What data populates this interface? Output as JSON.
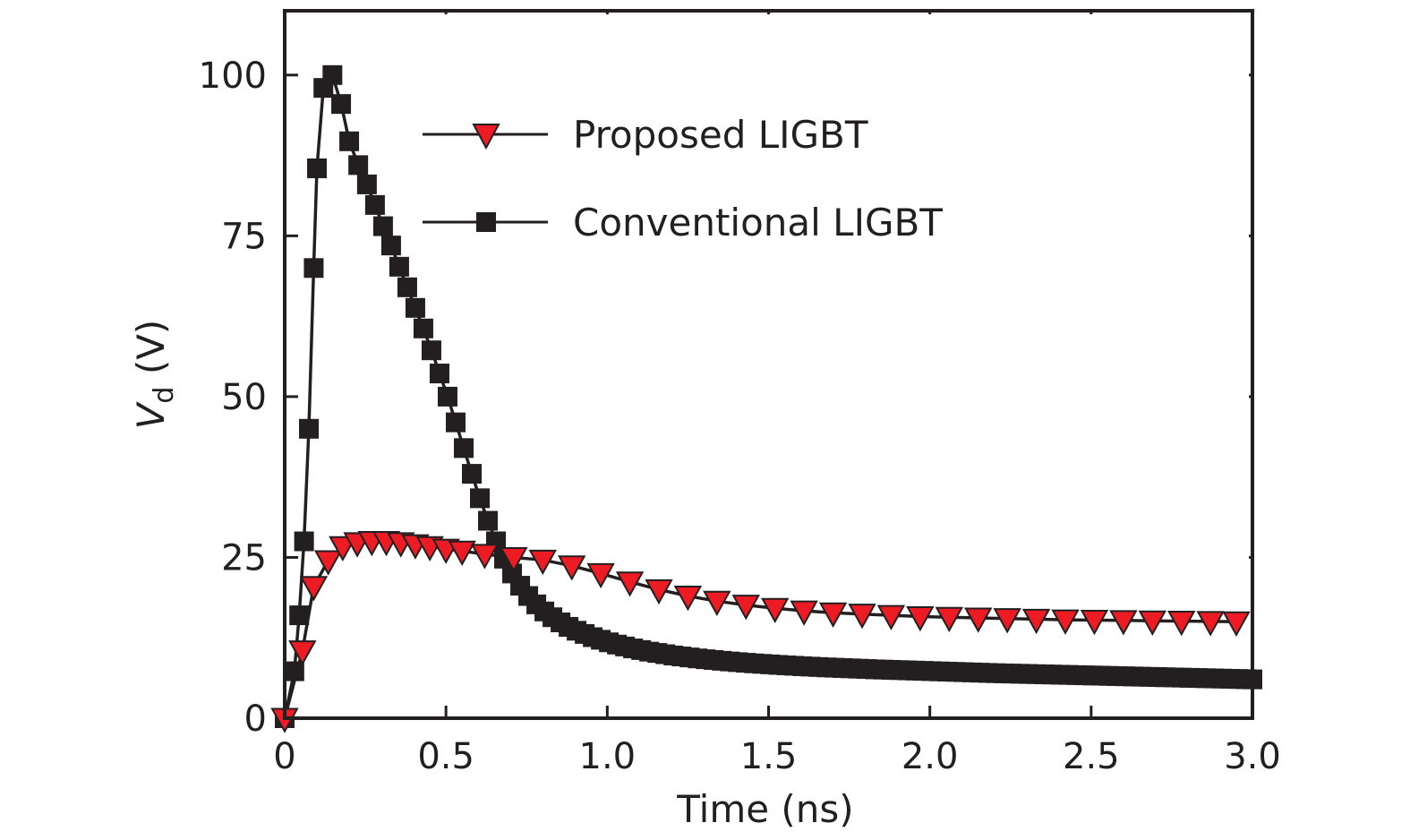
{
  "chart_data": {
    "type": "line",
    "title": "",
    "xlabel": "Time (ns)",
    "ylabel": {
      "main": "V",
      "subscript": "d",
      "unit": " (V)"
    },
    "xlim": [
      0,
      3.0
    ],
    "ylim": [
      0,
      110
    ],
    "x_ticks": [
      0,
      0.5,
      1.0,
      1.5,
      2.0,
      2.5,
      3.0
    ],
    "x_tick_labels": [
      "0",
      "0.5",
      "1.0",
      "1.5",
      "2.0",
      "2.5",
      "3.0"
    ],
    "y_ticks": [
      0,
      25,
      50,
      75,
      100
    ],
    "y_tick_labels": [
      "0",
      "25",
      "50",
      "75",
      "100"
    ],
    "grid": false,
    "legend_position": "top-center",
    "series": [
      {
        "name": "Proposed LIGBT",
        "marker": "triangle-down",
        "color": "#ed1c24",
        "edge_color": "#231f20",
        "x": [
          0,
          0.055,
          0.09,
          0.135,
          0.18,
          0.225,
          0.27,
          0.315,
          0.36,
          0.405,
          0.45,
          0.5,
          0.55,
          0.62,
          0.71,
          0.8,
          0.89,
          0.98,
          1.07,
          1.16,
          1.25,
          1.34,
          1.43,
          1.52,
          1.61,
          1.7,
          1.79,
          1.88,
          1.97,
          2.06,
          2.15,
          2.24,
          2.33,
          2.42,
          2.51,
          2.6,
          2.69,
          2.78,
          2.87,
          2.95
        ],
        "y": [
          0,
          10.5,
          20.5,
          24.5,
          26.7,
          27.3,
          27.5,
          27.5,
          27.3,
          27.0,
          26.7,
          26.3,
          26.0,
          25.5,
          25.0,
          24.6,
          23.7,
          22.5,
          21.2,
          20.0,
          19.0,
          18.2,
          17.6,
          17.1,
          16.7,
          16.4,
          16.2,
          16.0,
          15.8,
          15.7,
          15.6,
          15.5,
          15.4,
          15.3,
          15.25,
          15.2,
          15.15,
          15.1,
          15.05,
          15.0
        ]
      },
      {
        "name": "Conventional LIGBT",
        "marker": "square",
        "color": "#231f20",
        "edge_color": "#231f20",
        "x": [
          0,
          0.03,
          0.045,
          0.06,
          0.075,
          0.09,
          0.1,
          0.12,
          0.148,
          0.175,
          0.2,
          0.228,
          0.255,
          0.28,
          0.305,
          0.33,
          0.355,
          0.38,
          0.405,
          0.43,
          0.455,
          0.48,
          0.505,
          0.53,
          0.555,
          0.58,
          0.605,
          0.63,
          0.655,
          0.68,
          0.705,
          0.73,
          0.755,
          0.78,
          0.805,
          0.83,
          0.855,
          0.88,
          0.905,
          0.93,
          0.955,
          0.98,
          1.005,
          1.03,
          1.055,
          1.08,
          1.105,
          1.13,
          1.155,
          1.18,
          1.205,
          1.23,
          1.255,
          1.28,
          1.305,
          1.33,
          1.355,
          1.38,
          1.405,
          1.43,
          1.455,
          1.48,
          1.505,
          1.53,
          1.555,
          1.58,
          1.605,
          1.63,
          1.655,
          1.68,
          1.705,
          1.73,
          1.755,
          1.78,
          1.805,
          1.83,
          1.855,
          1.88,
          1.905,
          1.93,
          1.955,
          1.98,
          2.005,
          2.03,
          2.055,
          2.08,
          2.105,
          2.13,
          2.155,
          2.18,
          2.205,
          2.23,
          2.255,
          2.28,
          2.305,
          2.33,
          2.355,
          2.38,
          2.405,
          2.43,
          2.455,
          2.48,
          2.505,
          2.53,
          2.555,
          2.58,
          2.605,
          2.63,
          2.655,
          2.68,
          2.705,
          2.73,
          2.755,
          2.78,
          2.805,
          2.83,
          2.855,
          2.88,
          2.905,
          2.93,
          2.955,
          2.98,
          3.0
        ],
        "y": [
          0,
          7.3,
          16.0,
          27.5,
          45.0,
          70.0,
          85.5,
          98.0,
          100.0,
          95.5,
          89.7,
          86.0,
          83.0,
          79.8,
          76.5,
          73.5,
          70.2,
          67.0,
          63.8,
          60.6,
          57.2,
          53.6,
          50.0,
          46.0,
          42.0,
          38.0,
          34.2,
          30.7,
          27.5,
          24.8,
          22.5,
          20.6,
          19.0,
          17.7,
          16.6,
          15.7,
          14.9,
          14.2,
          13.6,
          13.1,
          12.6,
          12.2,
          11.8,
          11.45,
          11.15,
          10.85,
          10.6,
          10.35,
          10.15,
          9.95,
          9.75,
          9.6,
          9.45,
          9.3,
          9.17,
          9.05,
          8.93,
          8.82,
          8.72,
          8.62,
          8.53,
          8.45,
          8.37,
          8.29,
          8.22,
          8.15,
          8.08,
          8.02,
          7.96,
          7.9,
          7.85,
          7.8,
          7.75,
          7.7,
          7.65,
          7.6,
          7.56,
          7.52,
          7.48,
          7.44,
          7.4,
          7.36,
          7.32,
          7.28,
          7.24,
          7.2,
          7.16,
          7.12,
          7.08,
          7.04,
          7.0,
          6.97,
          6.94,
          6.91,
          6.88,
          6.85,
          6.82,
          6.79,
          6.76,
          6.73,
          6.7,
          6.67,
          6.64,
          6.61,
          6.58,
          6.55,
          6.52,
          6.49,
          6.46,
          6.43,
          6.4,
          6.37,
          6.34,
          6.31,
          6.28,
          6.25,
          6.22,
          6.19,
          6.16,
          6.13,
          6.1,
          6.07,
          6.04
        ]
      }
    ]
  }
}
